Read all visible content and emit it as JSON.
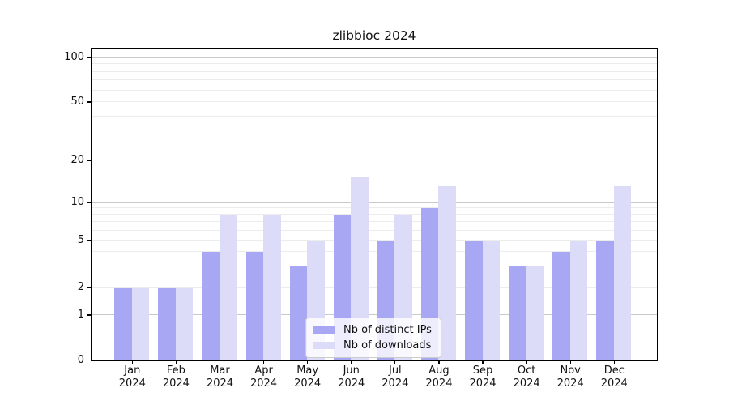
{
  "chart_data": {
    "type": "bar",
    "title": "zlibbioc 2024",
    "categories": [
      "Jan",
      "Feb",
      "Mar",
      "Apr",
      "May",
      "Jun",
      "Jul",
      "Aug",
      "Sep",
      "Oct",
      "Nov",
      "Dec"
    ],
    "year": "2024",
    "series": [
      {
        "name": "Nb of distinct IPs",
        "key": "ips",
        "color": "#a7a7f4",
        "values": [
          2,
          2,
          4,
          4,
          3,
          8,
          5,
          9,
          5,
          3,
          4,
          5
        ]
      },
      {
        "name": "Nb of downloads",
        "key": "downloads",
        "color": "#dcdcf8",
        "values": [
          2,
          2,
          8,
          8,
          5,
          15,
          8,
          13,
          5,
          3,
          5,
          13
        ]
      }
    ],
    "y_ticks": [
      0,
      1,
      2,
      5,
      10,
      20,
      50,
      100
    ],
    "y_minor_gridlines": [
      2,
      3,
      4,
      5,
      6,
      7,
      8,
      9,
      20,
      30,
      40,
      50,
      60,
      70,
      80,
      90
    ],
    "y_major_gridlines": [
      1,
      10,
      100
    ],
    "ylim": [
      0,
      120
    ],
    "y_scale": "symlog",
    "grid": true,
    "legend_position": "lower center",
    "colors": {
      "major_grid": "#c9c9c9",
      "minor_grid": "#ececec",
      "axis": "#000000",
      "text": "#111111"
    }
  }
}
